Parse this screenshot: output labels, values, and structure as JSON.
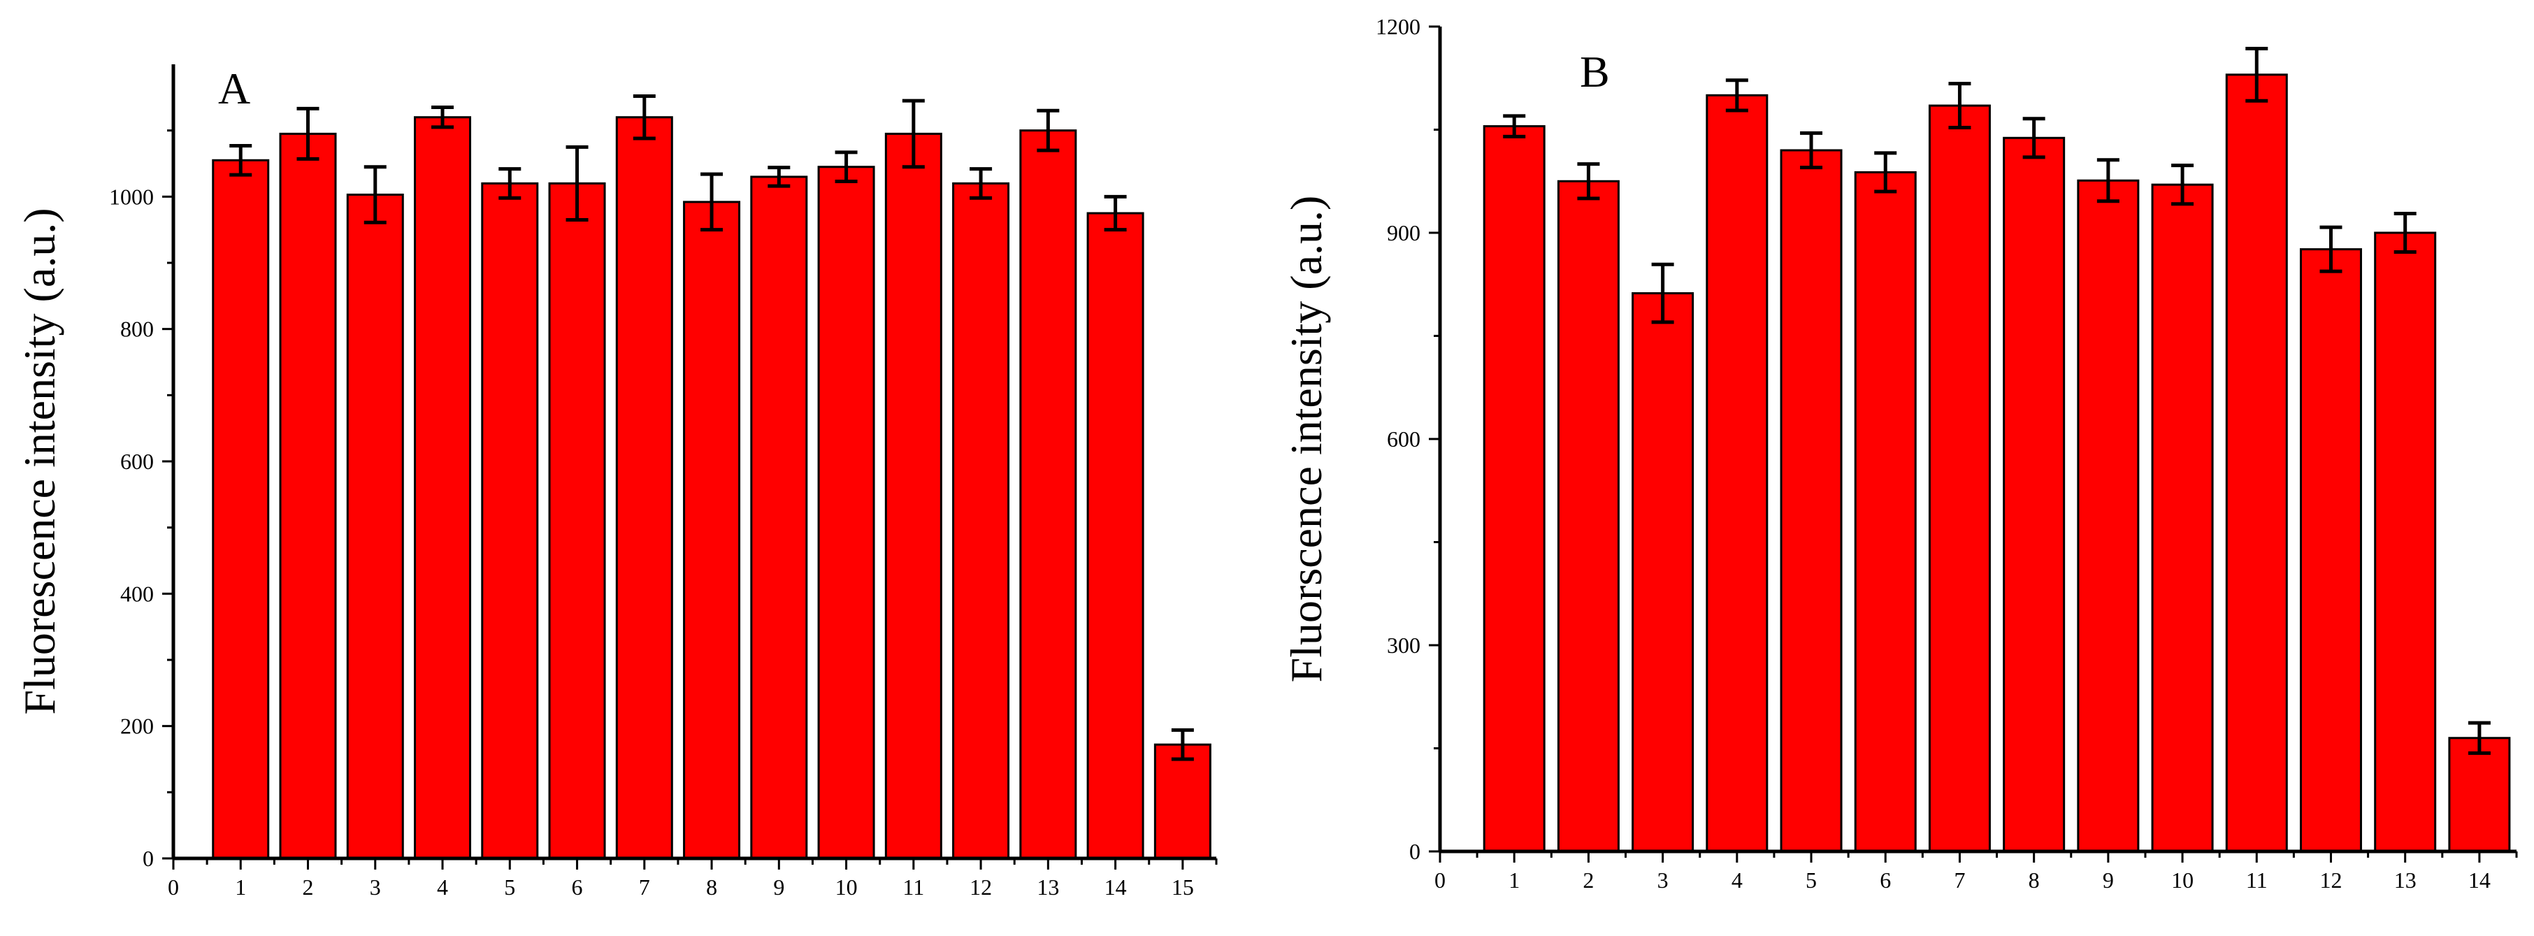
{
  "bar_color": "#ff0000",
  "axis_color": "#000000",
  "chart_data": [
    {
      "type": "bar",
      "panel_label": "A",
      "title": "",
      "xlabel": "",
      "ylabel": "Fluorescence intensity (a.u.)",
      "xlim": [
        0,
        15.5
      ],
      "ylim": [
        0,
        1200
      ],
      "x_ticks": [
        "0",
        "1",
        "2",
        "3",
        "4",
        "5",
        "6",
        "7",
        "8",
        "9",
        "10",
        "11",
        "12",
        "13",
        "14",
        "15"
      ],
      "y_ticks": [
        "0",
        "200",
        "400",
        "600",
        "800",
        "1000"
      ],
      "categories": [
        "1",
        "2",
        "3",
        "4",
        "5",
        "6",
        "7",
        "8",
        "9",
        "10",
        "11",
        "12",
        "13",
        "14",
        "15"
      ],
      "values": [
        1055,
        1095,
        1003,
        1120,
        1020,
        1020,
        1120,
        992,
        1030,
        1045,
        1095,
        1020,
        1100,
        975,
        172
      ],
      "errors": [
        22,
        38,
        42,
        15,
        22,
        55,
        32,
        42,
        14,
        22,
        50,
        22,
        30,
        25,
        22
      ]
    },
    {
      "type": "bar",
      "panel_label": "B",
      "title": "",
      "xlabel": "",
      "ylabel": "Fluorscence intensity (a.u.)",
      "xlim": [
        0,
        14.5
      ],
      "ylim": [
        0,
        1200
      ],
      "x_ticks": [
        "0",
        "1",
        "2",
        "3",
        "4",
        "5",
        "6",
        "7",
        "8",
        "9",
        "10",
        "11",
        "12",
        "13",
        "14"
      ],
      "y_ticks": [
        "0",
        "300",
        "600",
        "900",
        "1200"
      ],
      "categories": [
        "1",
        "2",
        "3",
        "4",
        "5",
        "6",
        "7",
        "8",
        "9",
        "10",
        "11",
        "12",
        "13",
        "14"
      ],
      "values": [
        1055,
        975,
        812,
        1100,
        1020,
        988,
        1085,
        1038,
        976,
        970,
        1130,
        876,
        900,
        165
      ],
      "errors": [
        15,
        25,
        42,
        22,
        25,
        28,
        32,
        28,
        30,
        28,
        38,
        32,
        28,
        22
      ]
    }
  ]
}
